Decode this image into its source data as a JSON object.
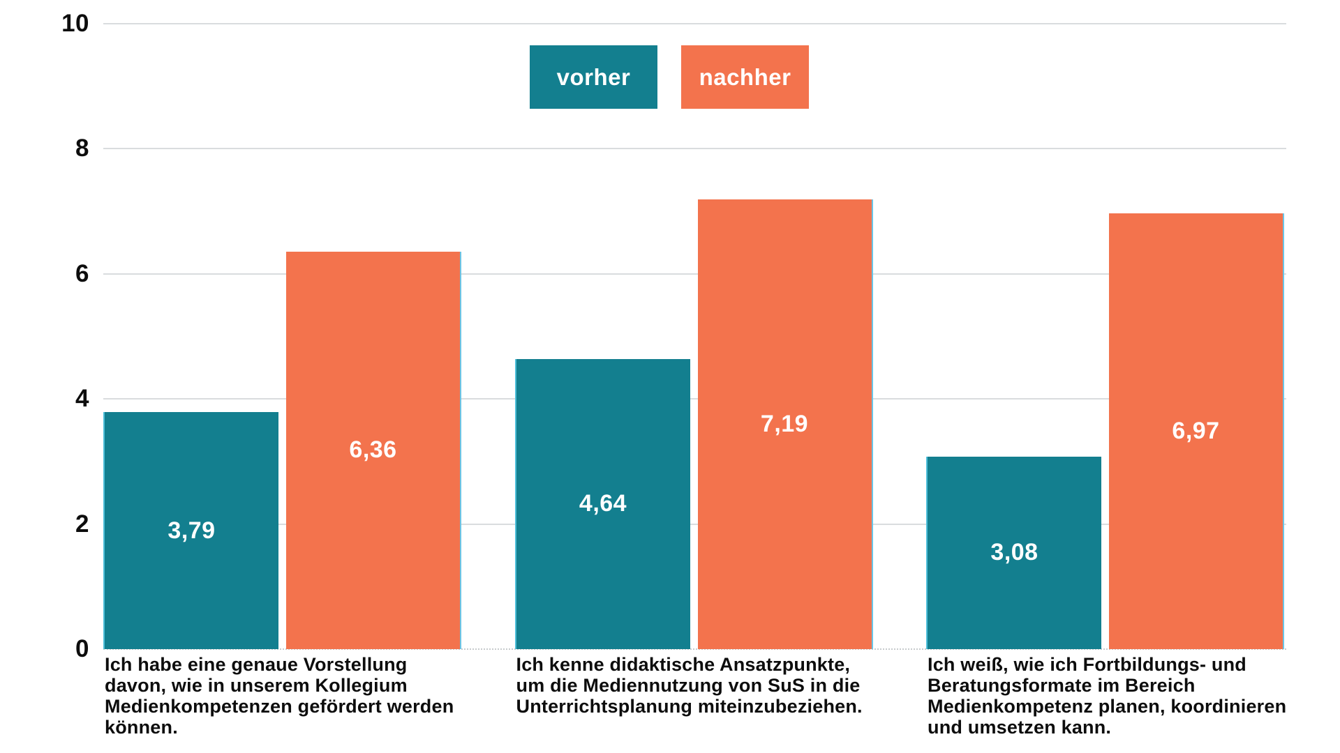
{
  "chart_data": {
    "type": "bar",
    "title": "",
    "xlabel": "",
    "ylabel": "",
    "ylim": [
      0,
      10
    ],
    "yticks": [
      0,
      2,
      4,
      6,
      8,
      10
    ],
    "ytick_labels": [
      "0",
      "2",
      "4",
      "6",
      "8",
      "10"
    ],
    "grid": true,
    "legend_position": "top-center",
    "background": "#FFFFFF",
    "gridline_color": "#D9DCDE",
    "baseline_color": "#C6CACC",
    "text_color": "#0D0D0D",
    "value_label_color": "#FFFFFF",
    "categories": [
      {
        "full": "Ich habe eine genaue Vorstellung davon, wie in unserem Kollegium Medienkompetenzen gefördert werden können.",
        "lines": [
          "Ich habe eine genaue Vorstellung",
          "davon, wie in unserem Kollegium",
          "Medienkompetenzen gefördert werden",
          "können."
        ]
      },
      {
        "full": "Ich kenne didaktische Ansatzpunkte, um die Mediennutzung von SuS in die Unterrichtsplanung miteinzubeziehen.",
        "lines": [
          "Ich kenne didaktische Ansatzpunkte,",
          "um die Mediennutzung von SuS in die",
          "Unterrichtsplanung miteinzubeziehen."
        ]
      },
      {
        "full": "Ich weiß, wie ich Fortbildungs- und Beratungsformate im Bereich Medienkompetenz planen, koordinieren und umsetzen kann.",
        "lines": [
          "Ich weiß, wie ich Fortbildungs- und",
          "Beratungsformate im Bereich",
          "Medienkompetenz planen, koordinieren",
          "und umsetzen kann."
        ]
      }
    ],
    "series": [
      {
        "name": "vorher",
        "color": "#137F8F",
        "edge_color": "#4FC0DB",
        "values": [
          3.79,
          4.64,
          3.08
        ],
        "value_labels": [
          "3,79",
          "4,64",
          "3,08"
        ]
      },
      {
        "name": "nachher",
        "color": "#F3734D",
        "edge_color": "#6BC5E6",
        "values": [
          6.36,
          7.19,
          6.97
        ],
        "value_labels": [
          "6,36",
          "7,19",
          "6,97"
        ]
      }
    ]
  }
}
